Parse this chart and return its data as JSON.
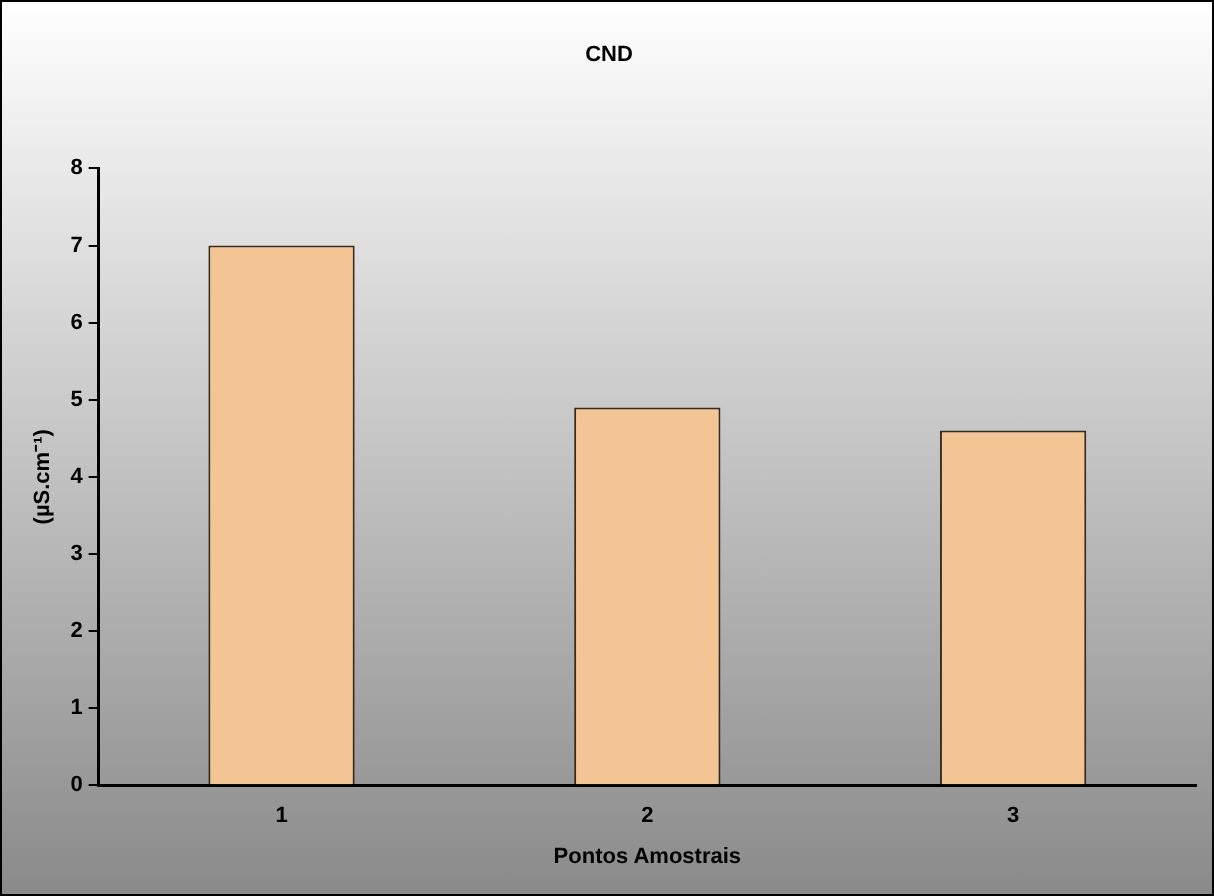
{
  "chart_data": {
    "type": "bar",
    "title": "CND",
    "xlabel": "Pontos Amostrais",
    "ylabel": "(µS.cm⁻¹)",
    "categories": [
      "1",
      "2",
      "3"
    ],
    "values": [
      7.0,
      4.9,
      4.6
    ],
    "color": "#f4c594",
    "ylim": [
      0,
      8
    ],
    "yticks": [
      0,
      1,
      2,
      3,
      4,
      5,
      6,
      7,
      8
    ],
    "grid": false,
    "legend": false
  }
}
